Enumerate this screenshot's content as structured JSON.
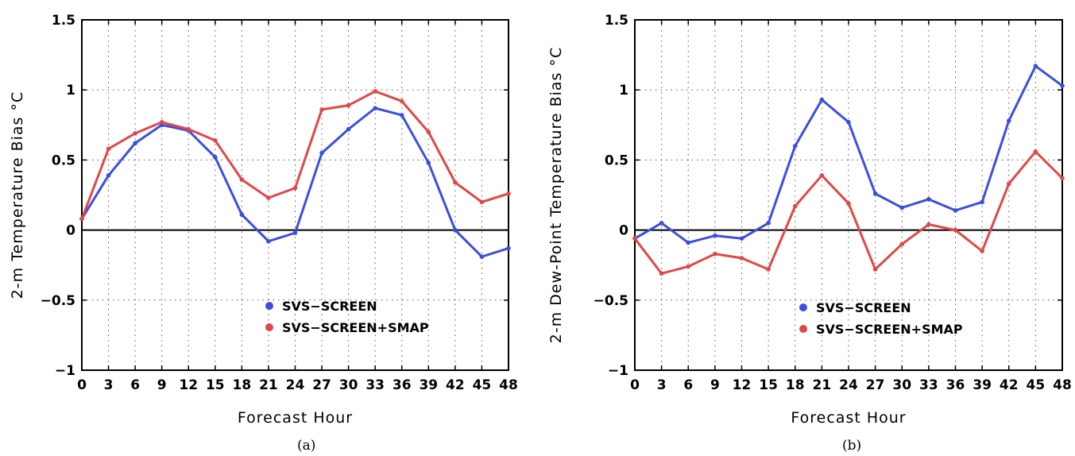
{
  "chart_data": [
    {
      "type": "line",
      "panel_label": "(a)",
      "xlabel": "Forecast Hour",
      "ylabel": "2-m Temperature Bias °C",
      "x": [
        0,
        3,
        6,
        9,
        12,
        15,
        18,
        21,
        24,
        27,
        30,
        33,
        36,
        39,
        42,
        45,
        48
      ],
      "xlim": [
        0,
        48
      ],
      "ylim": [
        -1,
        1.5
      ],
      "yticks": [
        -1,
        -0.5,
        0,
        0.5,
        1,
        1.5
      ],
      "ytick_labels": [
        "−1",
        "−0.5",
        "0",
        "0.5",
        "1",
        "1.5"
      ],
      "grid": true,
      "legend_position": "bottom-center",
      "series": [
        {
          "name": "SVS−SCREEN",
          "color": "#3a4fe0",
          "values": [
            0.08,
            0.39,
            0.62,
            0.75,
            0.71,
            0.52,
            0.11,
            -0.08,
            -0.02,
            0.55,
            0.72,
            0.87,
            0.82,
            0.48,
            0.0,
            -0.19,
            -0.13
          ]
        },
        {
          "name": "SVS−SCREEN+SMAP",
          "color": "#e04848",
          "values": [
            0.08,
            0.58,
            0.69,
            0.77,
            0.72,
            0.64,
            0.36,
            0.23,
            0.3,
            0.86,
            0.89,
            0.99,
            0.92,
            0.7,
            0.34,
            0.2,
            0.26
          ]
        }
      ]
    },
    {
      "type": "line",
      "panel_label": "(b)",
      "xlabel": "Forecast Hour",
      "ylabel": "2-m Dew-Point Temperature Bias °C",
      "x": [
        0,
        3,
        6,
        9,
        12,
        15,
        18,
        21,
        24,
        27,
        30,
        33,
        36,
        39,
        42,
        45,
        48
      ],
      "xlim": [
        0,
        48
      ],
      "ylim": [
        -1,
        1.5
      ],
      "yticks": [
        -1,
        -0.5,
        0,
        0.5,
        1,
        1.5
      ],
      "ytick_labels": [
        "−1",
        "−0.5",
        "0",
        "0.5",
        "1",
        "1.5"
      ],
      "grid": true,
      "legend_position": "bottom-center",
      "series": [
        {
          "name": "SVS−SCREEN",
          "color": "#3a4fe0",
          "values": [
            -0.06,
            0.05,
            -0.09,
            -0.04,
            -0.06,
            0.05,
            0.6,
            0.93,
            0.77,
            0.26,
            0.16,
            0.22,
            0.14,
            0.2,
            0.78,
            1.17,
            1.03
          ]
        },
        {
          "name": "SVS−SCREEN+SMAP",
          "color": "#e04848",
          "values": [
            -0.06,
            -0.31,
            -0.26,
            -0.17,
            -0.2,
            -0.28,
            0.17,
            0.39,
            0.19,
            -0.28,
            -0.1,
            0.04,
            0.0,
            -0.15,
            0.33,
            0.56,
            0.37
          ]
        }
      ]
    }
  ]
}
